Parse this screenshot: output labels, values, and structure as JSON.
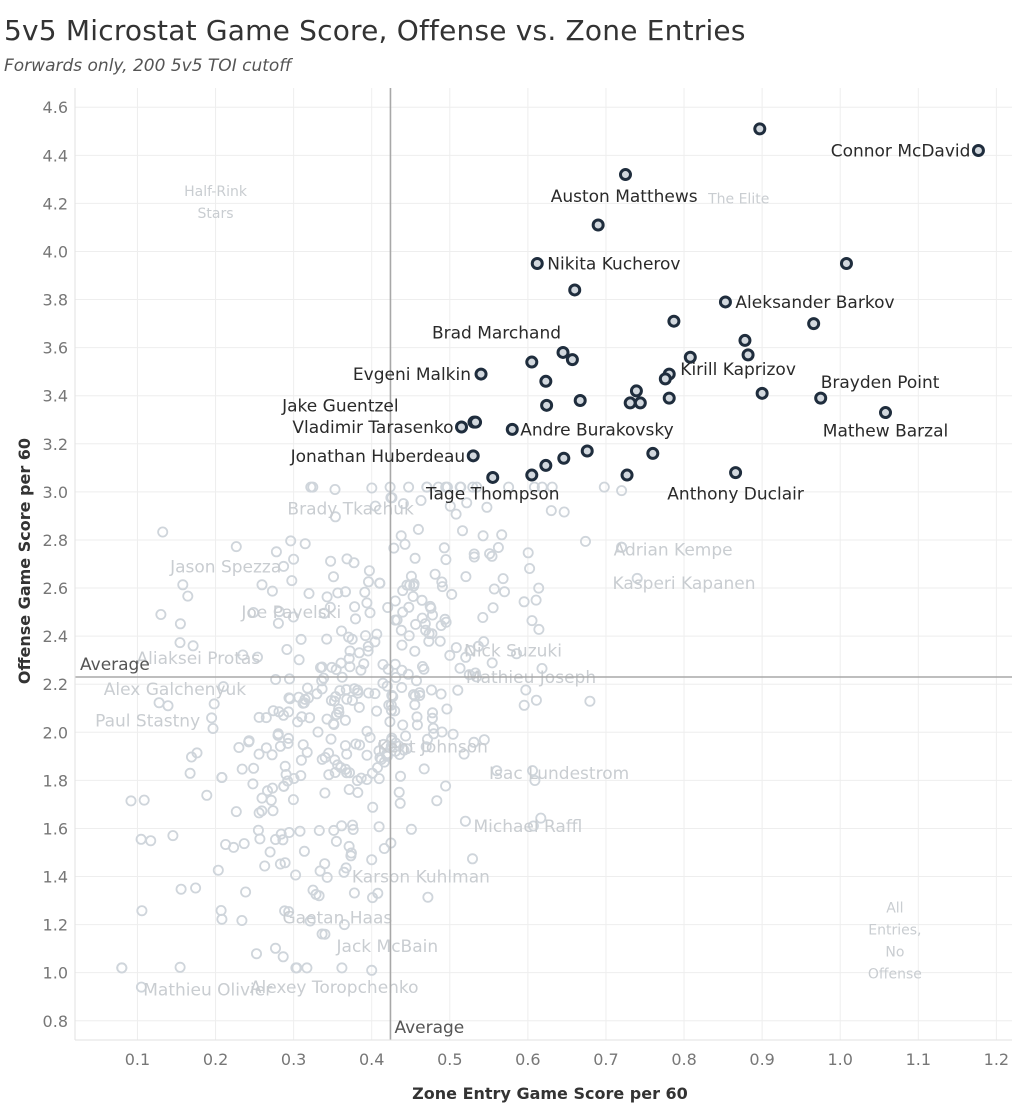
{
  "chart_data": {
    "type": "scatter",
    "title": "5v5 Microstat Game Score, Offense vs. Zone Entries",
    "subtitle": "Forwards only, 200 5v5 TOI cutoff",
    "xlabel": "Zone Entry Game Score per 60",
    "ylabel": "Offense Game Score per 60",
    "xlim": [
      0.02,
      1.22
    ],
    "ylim": [
      0.72,
      4.68
    ],
    "xticks": [
      0.1,
      0.2,
      0.3,
      0.4,
      0.5,
      0.6,
      0.7,
      0.8,
      0.9,
      1.0,
      1.1,
      1.2
    ],
    "yticks": [
      0.8,
      1.0,
      1.2,
      1.4,
      1.6,
      1.8,
      2.0,
      2.2,
      2.4,
      2.6,
      2.8,
      3.0,
      3.2,
      3.4,
      3.6,
      3.8,
      4.0,
      4.2,
      4.4,
      4.6
    ],
    "average_x": 0.424,
    "average_y": 2.23,
    "average_label": "Average",
    "quadrant_labels": [
      {
        "text": [
          "Half-Rink",
          "Stars"
        ],
        "x": 0.2,
        "y": 4.23
      },
      {
        "text": [
          "The Elite"
        ],
        "x": 0.87,
        "y": 4.2
      },
      {
        "text": [
          "All",
          "Entries,",
          "No",
          "Offense"
        ],
        "x": 1.07,
        "y": 1.25
      }
    ],
    "highlight_points": [
      {
        "x": 0.897,
        "y": 4.51
      },
      {
        "x": 1.177,
        "y": 4.42,
        "label": "Connor McDavid",
        "anchor": "end",
        "dx": -8,
        "dy": 6
      },
      {
        "x": 0.725,
        "y": 4.32
      },
      {
        "x": 0.69,
        "y": 4.11,
        "label": "Auston Matthews",
        "anchor": "middle",
        "dx": 26,
        "dy": -23
      },
      {
        "x": 0.612,
        "y": 3.95,
        "label": "Nikita Kucherov",
        "anchor": "start",
        "dx": 10,
        "dy": 6
      },
      {
        "x": 1.008,
        "y": 3.95
      },
      {
        "x": 0.66,
        "y": 3.84
      },
      {
        "x": 0.853,
        "y": 3.79,
        "label": "Aleksander Barkov",
        "anchor": "start",
        "dx": 10,
        "dy": 6
      },
      {
        "x": 0.787,
        "y": 3.71
      },
      {
        "x": 0.966,
        "y": 3.7
      },
      {
        "x": 0.878,
        "y": 3.63
      },
      {
        "x": 0.645,
        "y": 3.58,
        "label": "Brad Marchand",
        "anchor": "end",
        "dx": -2,
        "dy": -14
      },
      {
        "x": 0.657,
        "y": 3.55
      },
      {
        "x": 0.605,
        "y": 3.54
      },
      {
        "x": 0.808,
        "y": 3.56
      },
      {
        "x": 0.882,
        "y": 3.57
      },
      {
        "x": 0.781,
        "y": 3.49
      },
      {
        "x": 0.776,
        "y": 3.47,
        "label": "Kirill Kaprizov",
        "anchor": "start",
        "dx": 15,
        "dy": -4
      },
      {
        "x": 0.54,
        "y": 3.49,
        "label": "Evgeni Malkin",
        "anchor": "end",
        "dx": -10,
        "dy": 6
      },
      {
        "x": 0.623,
        "y": 3.46
      },
      {
        "x": 0.739,
        "y": 3.42
      },
      {
        "x": 0.9,
        "y": 3.41
      },
      {
        "x": 0.975,
        "y": 3.39,
        "label": "Brayden Point",
        "anchor": "start",
        "dx": 0,
        "dy": -10
      },
      {
        "x": 0.667,
        "y": 3.38
      },
      {
        "x": 0.731,
        "y": 3.37
      },
      {
        "x": 0.744,
        "y": 3.37
      },
      {
        "x": 0.781,
        "y": 3.39
      },
      {
        "x": 0.624,
        "y": 3.36,
        "label": "Jake Guentzel",
        "anchor": "end",
        "dx": -148,
        "dy": 6
      },
      {
        "x": 1.058,
        "y": 3.33,
        "label": "Mathew Barzal",
        "anchor": "middle",
        "dx": 0,
        "dy": 24
      },
      {
        "x": 0.531,
        "y": 3.29
      },
      {
        "x": 0.533,
        "y": 3.29
      },
      {
        "x": 0.515,
        "y": 3.27,
        "label": "Vladimir Tarasenko",
        "anchor": "end",
        "dx": -8,
        "dy": 6
      },
      {
        "x": 0.58,
        "y": 3.26,
        "label": "Andre Burakovsky",
        "anchor": "start",
        "dx": 8,
        "dy": 6
      },
      {
        "x": 0.676,
        "y": 3.17
      },
      {
        "x": 0.76,
        "y": 3.16
      },
      {
        "x": 0.53,
        "y": 3.15,
        "label": "Jonathan Huberdeau",
        "anchor": "end",
        "dx": -8,
        "dy": 6
      },
      {
        "x": 0.646,
        "y": 3.14
      },
      {
        "x": 0.623,
        "y": 3.11
      },
      {
        "x": 0.866,
        "y": 3.08,
        "label": "Anthony Duclair",
        "anchor": "middle",
        "dx": 0,
        "dy": 27
      },
      {
        "x": 0.727,
        "y": 3.07
      },
      {
        "x": 0.555,
        "y": 3.06,
        "label": "Tage Thompson",
        "anchor": "middle",
        "dx": 0,
        "dy": 22
      },
      {
        "x": 0.605,
        "y": 3.07
      }
    ],
    "labeled_background": [
      {
        "x": 0.13,
        "y": 2.49,
        "label": "Aliaksei Protas",
        "lx": 0.178,
        "ly": 2.31
      },
      {
        "x": 0.21,
        "y": 2.19,
        "label": "Alex Galchenyuk",
        "lx": 0.148,
        "ly": 2.18
      },
      {
        "x": 0.195,
        "y": 2.06,
        "label": "Paul Stastny",
        "lx": 0.113,
        "ly": 2.05
      },
      {
        "x": 0.105,
        "y": 0.94,
        "label": "Mathieu Olivier",
        "lx": 0.19,
        "ly": 0.93
      },
      {
        "x": 0.3,
        "y": 2.72,
        "label": "Jason Spezza",
        "lx": 0.213,
        "ly": 2.69
      },
      {
        "x": 0.353,
        "y": 3.01,
        "label": "Brady Tkachuk",
        "lx": 0.373,
        "ly": 2.93
      },
      {
        "x": 0.347,
        "y": 2.52,
        "label": "Joe Pavelski",
        "lx": 0.297,
        "ly": 2.5
      },
      {
        "x": 0.5,
        "y": 2.32,
        "label": "Nick Suzuki",
        "lx": 0.581,
        "ly": 2.34
      },
      {
        "x": 0.525,
        "y": 2.24,
        "label": "Mathieu Joseph",
        "lx": 0.604,
        "ly": 2.23
      },
      {
        "x": 0.72,
        "y": 2.77,
        "label": "Adrian Kempe",
        "lx": 0.786,
        "ly": 2.76
      },
      {
        "x": 0.74,
        "y": 2.64,
        "label": "Kasperi Kapanen",
        "lx": 0.8,
        "ly": 2.62
      },
      {
        "x": 0.42,
        "y": 1.9,
        "label": "Kent Johnson",
        "lx": 0.478,
        "ly": 1.94
      },
      {
        "x": 0.56,
        "y": 1.84,
        "label": "Isac Lundestrom",
        "lx": 0.64,
        "ly": 1.83
      },
      {
        "x": 0.52,
        "y": 1.63,
        "label": "Michael Raffl",
        "lx": 0.6,
        "ly": 1.61
      },
      {
        "x": 0.4,
        "y": 1.47,
        "label": "Karson Kuhlman",
        "lx": 0.463,
        "ly": 1.4
      },
      {
        "x": 0.34,
        "y": 1.16,
        "label": "Gaetan Haas",
        "lx": 0.356,
        "ly": 1.23
      },
      {
        "x": 0.365,
        "y": 1.2,
        "label": "Jack McBain",
        "lx": 0.42,
        "ly": 1.11
      },
      {
        "x": 0.4,
        "y": 1.01,
        "label": "Alexey Toropchenko",
        "lx": 0.352,
        "ly": 0.94
      }
    ],
    "background_seed": 7,
    "background_count": 430
  }
}
